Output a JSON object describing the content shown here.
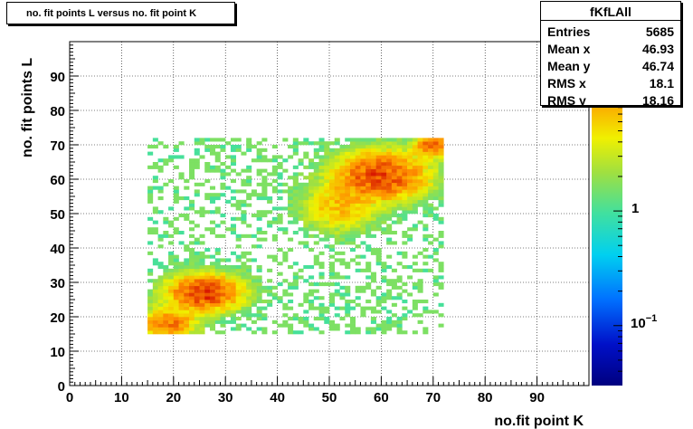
{
  "title": "no. fit points L versus no. fit point K",
  "stats": {
    "name": "fKfLAll",
    "rows": [
      {
        "label": "Entries",
        "value": "5685"
      },
      {
        "label": "Mean x",
        "value": "46.93"
      },
      {
        "label": "Mean y",
        "value": "46.74"
      },
      {
        "label": "RMS x",
        "value": "18.1"
      },
      {
        "label": "RMS y",
        "value": "18.16"
      }
    ]
  },
  "chart_data": {
    "type": "heatmap",
    "title": "no. fit points L versus no. fit point K",
    "xlabel": "no.fit point K",
    "ylabel": "no. fit points  L",
    "xlim": [
      0,
      100
    ],
    "ylim": [
      0,
      100
    ],
    "x_ticks": [
      "0",
      "10",
      "20",
      "30",
      "40",
      "50",
      "60",
      "70",
      "80",
      "90"
    ],
    "y_ticks": [
      "0",
      "10",
      "20",
      "30",
      "40",
      "50",
      "60",
      "70",
      "80",
      "90"
    ],
    "grid": true,
    "colorbar": {
      "scale": "log",
      "labels": [
        "10^-1",
        "1"
      ],
      "min": 0.03,
      "max": 30
    },
    "bin_width": 1,
    "clusters": [
      {
        "x": 26,
        "y": 27,
        "sx": 4.0,
        "sy": 3.0,
        "peak": 20
      },
      {
        "x": 19,
        "y": 18,
        "sx": 3.0,
        "sy": 2.5,
        "peak": 12
      },
      {
        "x": 60,
        "y": 61,
        "sx": 5.0,
        "sy": 4.0,
        "peak": 18
      },
      {
        "x": 70,
        "y": 70,
        "sx": 2.0,
        "sy": 2.0,
        "peak": 14
      },
      {
        "x": 52,
        "y": 52,
        "sx": 4.0,
        "sy": 4.0,
        "peak": 6
      }
    ],
    "region": {
      "x": [
        15,
        72
      ],
      "y": [
        15,
        72
      ]
    },
    "colors": {
      "low": "#00007f",
      "mid": "#00c8ff",
      "green": "#90e060",
      "yellow": "#f0f000",
      "orange": "#ff9a00",
      "high": "#c00000"
    }
  }
}
